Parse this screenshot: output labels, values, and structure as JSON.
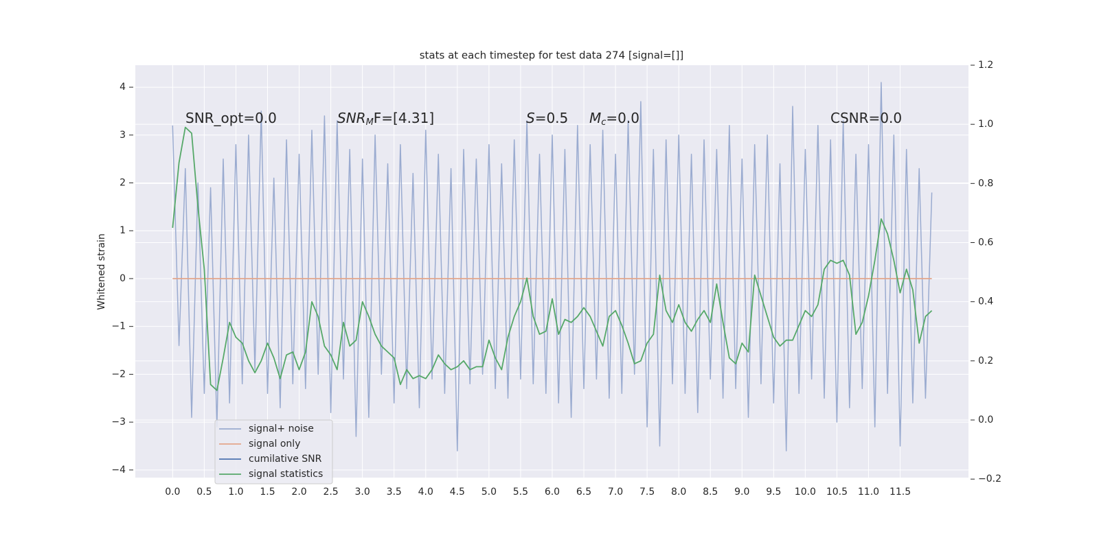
{
  "chart_data": {
    "type": "line",
    "title": "stats at each timestep for test data 274 [signal=[]]",
    "y_label": "Whitened strain",
    "grid": true,
    "legend_loc": "lower left",
    "plot_background": "#eaeaf2",
    "annotations": [
      {
        "text": "SNR_opt=0.0"
      },
      {
        "math": "SNR",
        "sub": "M",
        "text": "F=[4.31]"
      },
      {
        "math": "S",
        "text": "=0.5"
      },
      {
        "math": "M",
        "sub": "c",
        "text": "=0.0"
      },
      {
        "text": "CSNR=0.0"
      }
    ],
    "xlim": [
      -0.59,
      12.58
    ],
    "xticks": [
      {
        "value": 0,
        "label": "0.0"
      },
      0.5,
      {
        "value": 1,
        "label": "1.0"
      },
      1.5,
      {
        "value": 2,
        "label": "2.0"
      },
      2.5,
      {
        "value": 3,
        "label": "3.0"
      },
      3.5,
      {
        "value": 4,
        "label": "4.0"
      },
      4.5,
      {
        "value": 5,
        "label": "5.0"
      },
      5.5,
      {
        "value": 6,
        "label": "6.0"
      },
      6.5,
      {
        "value": 7,
        "label": "7.0"
      },
      7.5,
      {
        "value": 8,
        "label": "8.0"
      },
      8.5,
      {
        "value": 9,
        "label": "9.0"
      },
      9.5,
      {
        "value": 10,
        "label": "10.0"
      },
      10.5,
      {
        "value": 11,
        "label": "11.0"
      },
      11.5
    ],
    "ylim": [
      -4.16,
      4.46
    ],
    "yticks": [
      {
        "value": -4,
        "label": "−4"
      },
      {
        "value": -3,
        "label": "−3"
      },
      {
        "value": -2,
        "label": "−2"
      },
      {
        "value": -1,
        "label": "−1"
      },
      0,
      1,
      2,
      3,
      4
    ],
    "y2lim": [
      -0.195,
      1.2
    ],
    "y2ticks": [
      {
        "value": -0.2,
        "label": "−0.2"
      },
      {
        "value": 0,
        "label": "0.0"
      },
      0.2,
      0.4,
      0.6,
      0.8,
      {
        "value": 1,
        "label": "1.0"
      },
      1.2
    ],
    "x": [
      0.0,
      0.1,
      0.2,
      0.3,
      0.4,
      0.5,
      0.6,
      0.7,
      0.8,
      0.9,
      1.0,
      1.1,
      1.2,
      1.3,
      1.4,
      1.5,
      1.6,
      1.7,
      1.8,
      1.9,
      2.0,
      2.1,
      2.2,
      2.3,
      2.4,
      2.5,
      2.6,
      2.7,
      2.8,
      2.9,
      3.0,
      3.1,
      3.2,
      3.3,
      3.4,
      3.5,
      3.6,
      3.7,
      3.8,
      3.9,
      4.0,
      4.1,
      4.2,
      4.3,
      4.4,
      4.5,
      4.6,
      4.7,
      4.8,
      4.9,
      5.0,
      5.1,
      5.2,
      5.3,
      5.4,
      5.5,
      5.6,
      5.7,
      5.8,
      5.9,
      6.0,
      6.1,
      6.2,
      6.3,
      6.4,
      6.5,
      6.6,
      6.7,
      6.8,
      6.9,
      7.0,
      7.1,
      7.2,
      7.3,
      7.4,
      7.5,
      7.6,
      7.7,
      7.8,
      7.9,
      8.0,
      8.1,
      8.2,
      8.3,
      8.4,
      8.5,
      8.6,
      8.7,
      8.8,
      8.9,
      9.0,
      9.1,
      9.2,
      9.3,
      9.4,
      9.5,
      9.6,
      9.7,
      9.8,
      9.9,
      10.0,
      10.1,
      10.2,
      10.3,
      10.4,
      10.5,
      10.6,
      10.7,
      10.8,
      10.9,
      11.0,
      11.1,
      11.2,
      11.3,
      11.4,
      11.5,
      11.6,
      11.7,
      11.8,
      11.9,
      12.0
    ],
    "series": [
      {
        "name": "signal+ noise",
        "color": "#9aabd0",
        "values": [
          3.2,
          -1.4,
          2.3,
          -2.9,
          2.0,
          -2.4,
          1.9,
          -3.1,
          2.5,
          -2.6,
          2.8,
          -2.2,
          3.0,
          -1.9,
          3.5,
          -2.4,
          2.1,
          -2.7,
          2.9,
          -2.2,
          2.6,
          -2.3,
          3.1,
          -2.0,
          3.4,
          -2.8,
          3.3,
          -2.1,
          2.7,
          -3.3,
          2.5,
          -2.9,
          3.0,
          -2.0,
          2.4,
          -2.6,
          2.8,
          -2.3,
          2.2,
          -2.7,
          3.1,
          -2.1,
          2.6,
          -2.4,
          2.3,
          -3.6,
          2.7,
          -2.2,
          2.5,
          -2.0,
          2.8,
          -2.3,
          2.4,
          -2.5,
          2.9,
          -2.1,
          3.3,
          -2.2,
          2.6,
          -2.4,
          3.0,
          -2.6,
          2.7,
          -2.9,
          3.2,
          -2.3,
          2.8,
          -2.1,
          3.1,
          -2.5,
          2.6,
          -2.4,
          3.3,
          -2.0,
          3.7,
          -3.1,
          2.7,
          -3.5,
          2.9,
          -2.2,
          3.0,
          -2.4,
          2.6,
          -2.8,
          2.9,
          -2.1,
          2.7,
          -2.5,
          3.2,
          -2.3,
          2.5,
          -2.9,
          2.8,
          -2.2,
          3.0,
          -2.6,
          2.4,
          -3.6,
          3.6,
          -2.4,
          2.7,
          -2.1,
          3.2,
          -2.5,
          2.9,
          -3.0,
          3.3,
          -2.7,
          2.6,
          -2.3,
          2.8,
          -3.1,
          4.1,
          -2.4,
          3.0,
          -3.5,
          2.7,
          -2.6,
          2.3,
          -2.5,
          1.8
        ]
      },
      {
        "name": "signal only",
        "color": "#e3a58a",
        "x": [
          0.0,
          12.0
        ],
        "values": [
          0,
          0
        ]
      },
      {
        "name": "cumilative SNR",
        "color": "#4c72b0",
        "axis": "y2",
        "x": [],
        "values": []
      },
      {
        "name": "signal statistics",
        "color": "#55a868",
        "axis": "y2",
        "values": [
          0.65,
          0.87,
          0.99,
          0.97,
          0.72,
          0.51,
          0.12,
          0.1,
          0.21,
          0.33,
          0.28,
          0.26,
          0.2,
          0.16,
          0.2,
          0.26,
          0.21,
          0.14,
          0.22,
          0.23,
          0.17,
          0.23,
          0.4,
          0.35,
          0.25,
          0.22,
          0.17,
          0.33,
          0.25,
          0.27,
          0.4,
          0.35,
          0.29,
          0.25,
          0.23,
          0.21,
          0.12,
          0.17,
          0.14,
          0.15,
          0.14,
          0.17,
          0.22,
          0.19,
          0.17,
          0.18,
          0.2,
          0.17,
          0.18,
          0.18,
          0.27,
          0.21,
          0.17,
          0.28,
          0.35,
          0.4,
          0.48,
          0.35,
          0.29,
          0.3,
          0.41,
          0.29,
          0.34,
          0.33,
          0.35,
          0.38,
          0.35,
          0.3,
          0.25,
          0.35,
          0.37,
          0.32,
          0.26,
          0.19,
          0.2,
          0.26,
          0.29,
          0.49,
          0.37,
          0.33,
          0.39,
          0.33,
          0.3,
          0.34,
          0.37,
          0.33,
          0.46,
          0.33,
          0.21,
          0.19,
          0.26,
          0.23,
          0.49,
          0.42,
          0.35,
          0.28,
          0.25,
          0.27,
          0.27,
          0.32,
          0.37,
          0.35,
          0.39,
          0.51,
          0.54,
          0.53,
          0.54,
          0.49,
          0.29,
          0.33,
          0.42,
          0.54,
          0.68,
          0.63,
          0.54,
          0.43,
          0.51,
          0.44,
          0.26,
          0.35,
          0.37
        ]
      }
    ]
  }
}
